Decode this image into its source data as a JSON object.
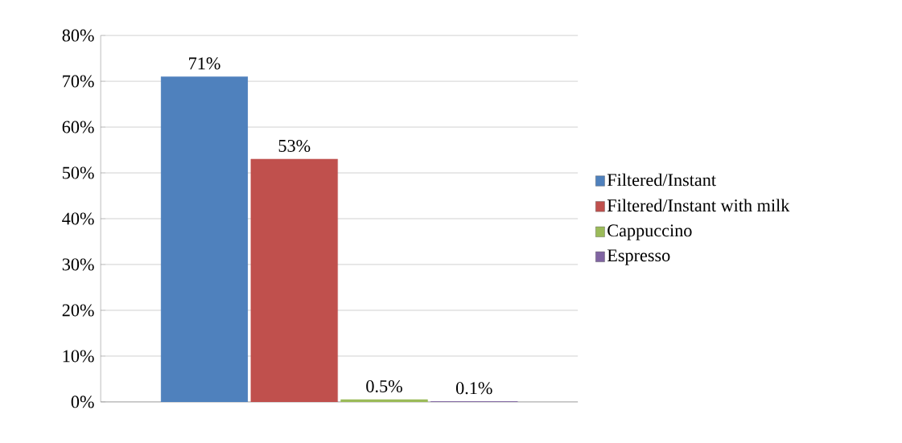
{
  "chart_data": {
    "type": "bar",
    "categories": [
      null
    ],
    "series": [
      {
        "name": "Filtered/Instant",
        "color": "#4f81bd",
        "values": [
          71
        ],
        "value_labels": [
          "71%"
        ]
      },
      {
        "name": "Filtered/Instant with milk",
        "color": "#c0504d",
        "values": [
          53
        ],
        "value_labels": [
          "53%"
        ]
      },
      {
        "name": "Cappuccino",
        "color": "#9bbb59",
        "values": [
          0.5
        ],
        "value_labels": [
          "0.5%"
        ]
      },
      {
        "name": "Espresso",
        "color": "#8064a2",
        "values": [
          0.1
        ],
        "value_labels": [
          "0.1%"
        ]
      }
    ],
    "ylim": [
      0,
      80
    ],
    "yticks": [
      {
        "value": 0,
        "label": "0%"
      },
      {
        "value": 10,
        "label": "10%"
      },
      {
        "value": 20,
        "label": "20%"
      },
      {
        "value": 30,
        "label": "30%"
      },
      {
        "value": 40,
        "label": "40%"
      },
      {
        "value": 50,
        "label": "50%"
      },
      {
        "value": 60,
        "label": "60%"
      },
      {
        "value": 70,
        "label": "70%"
      },
      {
        "value": 80,
        "label": "80%"
      }
    ],
    "grid": "y",
    "legend": "right"
  }
}
